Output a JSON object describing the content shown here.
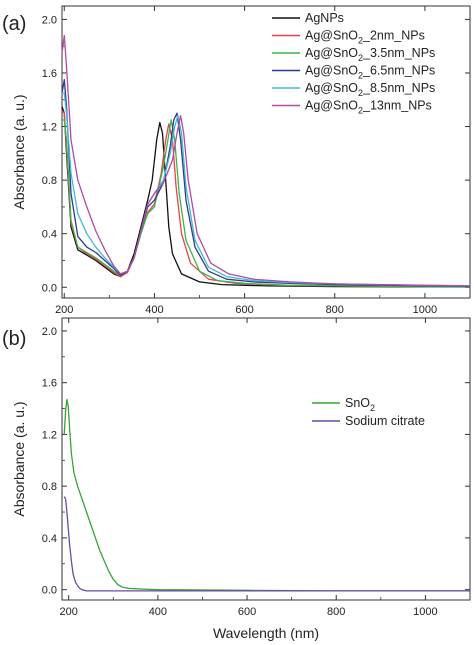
{
  "chart_data": [
    {
      "panel": "(a)",
      "type": "line",
      "xlabel": "",
      "ylabel": "Absorbance (a. u.)",
      "xlim": [
        195,
        1100
      ],
      "ylim": [
        -0.08,
        2.1
      ],
      "xticks": [
        "200",
        "400",
        "600",
        "800",
        "1000"
      ],
      "yticks": [
        "0.0",
        "0.4",
        "0.8",
        "1.2",
        "1.6",
        "2.0"
      ],
      "legend_position": "top-right",
      "legend": [
        {
          "pre": "AgNPs",
          "sub": "",
          "post": ""
        },
        {
          "pre": "Ag@SnO",
          "sub": "2",
          "post": "_2nm_NPs"
        },
        {
          "pre": "Ag@SnO",
          "sub": "2",
          "post": "_3.5nm_NPs"
        },
        {
          "pre": "Ag@SnO",
          "sub": "2",
          "post": "_6.5nm_NPs"
        },
        {
          "pre": "Ag@SnO",
          "sub": "2",
          "post": "_8.5nm_NPs"
        },
        {
          "pre": "Ag@SnO",
          "sub": "2",
          "post": "_13nm_NPs"
        }
      ],
      "series": [
        {
          "name": "AgNPs",
          "color": "#111111",
          "x": [
            195,
            200,
            205,
            215,
            230,
            250,
            270,
            290,
            310,
            325,
            340,
            355,
            370,
            385,
            395,
            405,
            412,
            418,
            425,
            432,
            440,
            460,
            500,
            550,
            650,
            800,
            1000,
            1100
          ],
          "y": [
            1.35,
            1.3,
            1.0,
            0.45,
            0.28,
            0.24,
            0.2,
            0.15,
            0.1,
            0.08,
            0.12,
            0.25,
            0.45,
            0.65,
            0.8,
            1.1,
            1.23,
            1.15,
            0.8,
            0.45,
            0.25,
            0.1,
            0.04,
            0.02,
            0.01,
            0.005,
            0.003,
            0.002
          ]
        },
        {
          "name": "Ag@SnO2_2nm_NPs",
          "color": "#e8414c",
          "x": [
            195,
            200,
            205,
            215,
            230,
            250,
            270,
            290,
            310,
            325,
            340,
            355,
            370,
            385,
            400,
            415,
            425,
            432,
            440,
            448,
            460,
            480,
            520,
            580,
            680,
            800,
            1000,
            1100
          ],
          "y": [
            1.32,
            1.3,
            1.05,
            0.48,
            0.3,
            0.25,
            0.21,
            0.16,
            0.11,
            0.08,
            0.11,
            0.22,
            0.4,
            0.56,
            0.62,
            0.85,
            1.1,
            1.22,
            1.1,
            0.75,
            0.4,
            0.18,
            0.06,
            0.03,
            0.015,
            0.01,
            0.005,
            0.003
          ]
        },
        {
          "name": "Ag@SnO2_3.5nm_NPs",
          "color": "#3cb44b",
          "x": [
            195,
            200,
            205,
            215,
            230,
            250,
            270,
            290,
            310,
            325,
            340,
            355,
            370,
            385,
            400,
            420,
            430,
            437,
            445,
            455,
            470,
            500,
            540,
            600,
            700,
            800,
            1000,
            1100
          ],
          "y": [
            1.25,
            1.25,
            1.1,
            0.5,
            0.3,
            0.26,
            0.22,
            0.17,
            0.12,
            0.09,
            0.12,
            0.22,
            0.4,
            0.55,
            0.6,
            0.9,
            1.1,
            1.25,
            1.1,
            0.7,
            0.35,
            0.12,
            0.05,
            0.03,
            0.015,
            0.01,
            0.005,
            0.003
          ]
        },
        {
          "name": "Ag@SnO2_6.5nm_NPs",
          "color": "#2e3a8c",
          "x": [
            195,
            200,
            205,
            215,
            230,
            250,
            270,
            290,
            310,
            325,
            340,
            355,
            370,
            385,
            400,
            420,
            435,
            443,
            450,
            458,
            470,
            490,
            520,
            560,
            620,
            700,
            800,
            1000,
            1100
          ],
          "y": [
            1.45,
            1.55,
            1.35,
            0.7,
            0.38,
            0.3,
            0.26,
            0.2,
            0.14,
            0.09,
            0.12,
            0.22,
            0.42,
            0.6,
            0.65,
            0.78,
            1.05,
            1.25,
            1.3,
            1.1,
            0.65,
            0.3,
            0.12,
            0.06,
            0.04,
            0.03,
            0.02,
            0.01,
            0.008
          ]
        },
        {
          "name": "Ag@SnO2_8.5nm_NPs",
          "color": "#3fb9d8",
          "x": [
            195,
            200,
            205,
            215,
            230,
            250,
            270,
            290,
            310,
            325,
            340,
            355,
            370,
            385,
            400,
            420,
            435,
            445,
            452,
            460,
            470,
            490,
            520,
            560,
            620,
            700,
            800,
            1000,
            1100
          ],
          "y": [
            1.45,
            1.45,
            1.3,
            0.85,
            0.55,
            0.4,
            0.3,
            0.22,
            0.15,
            0.1,
            0.12,
            0.22,
            0.42,
            0.62,
            0.7,
            0.8,
            1.0,
            1.2,
            1.28,
            1.15,
            0.75,
            0.35,
            0.15,
            0.08,
            0.05,
            0.035,
            0.025,
            0.015,
            0.01
          ]
        },
        {
          "name": "Ag@SnO2_13nm_NPs",
          "color": "#b04aa4",
          "x": [
            195,
            200,
            205,
            215,
            230,
            250,
            270,
            290,
            310,
            325,
            340,
            355,
            370,
            385,
            400,
            420,
            440,
            450,
            458,
            465,
            475,
            495,
            525,
            565,
            620,
            700,
            800,
            1000,
            1100
          ],
          "y": [
            1.75,
            1.88,
            1.65,
            1.1,
            0.8,
            0.6,
            0.42,
            0.28,
            0.16,
            0.1,
            0.12,
            0.22,
            0.42,
            0.62,
            0.7,
            0.78,
            0.95,
            1.15,
            1.28,
            1.15,
            0.8,
            0.4,
            0.18,
            0.1,
            0.06,
            0.04,
            0.025,
            0.015,
            0.01
          ]
        }
      ]
    },
    {
      "panel": "(b)",
      "type": "line",
      "xlabel": "Wavelength (nm)",
      "ylabel": "Absorbance (a. u.)",
      "xlim": [
        185,
        1100
      ],
      "ylim": [
        -0.08,
        2.1
      ],
      "xticks": [
        "200",
        "400",
        "600",
        "800",
        "1000"
      ],
      "yticks": [
        "0.0",
        "0.4",
        "0.8",
        "1.2",
        "1.6",
        "2.0"
      ],
      "legend_position": "middle-right",
      "legend": [
        {
          "pre": "SnO",
          "sub": "2",
          "post": ""
        },
        {
          "pre": "Sodium citrate",
          "sub": "",
          "post": ""
        }
      ],
      "series": [
        {
          "name": "SnO2",
          "color": "#3aa335",
          "x": [
            190,
            193,
            196,
            199,
            202,
            206,
            212,
            220,
            230,
            240,
            250,
            260,
            270,
            280,
            290,
            300,
            310,
            320,
            335,
            360,
            400,
            600,
            800,
            1000,
            1100
          ],
          "y": [
            1.2,
            1.38,
            1.47,
            1.42,
            1.25,
            1.05,
            0.9,
            0.8,
            0.7,
            0.6,
            0.5,
            0.4,
            0.3,
            0.22,
            0.14,
            0.08,
            0.04,
            0.02,
            0.01,
            0.005,
            0.0,
            -0.005,
            -0.01,
            -0.01,
            -0.01
          ]
        },
        {
          "name": "Sodium citrate",
          "color": "#6a4aa8",
          "x": [
            190,
            193,
            196,
            199,
            202,
            206,
            210,
            215,
            220,
            225,
            230,
            240,
            260,
            300,
            400,
            600,
            800,
            1000,
            1100
          ],
          "y": [
            0.72,
            0.7,
            0.6,
            0.48,
            0.35,
            0.22,
            0.12,
            0.06,
            0.03,
            0.01,
            0.0,
            -0.01,
            -0.01,
            -0.01,
            -0.01,
            -0.01,
            -0.01,
            -0.01,
            -0.01
          ]
        }
      ]
    }
  ]
}
